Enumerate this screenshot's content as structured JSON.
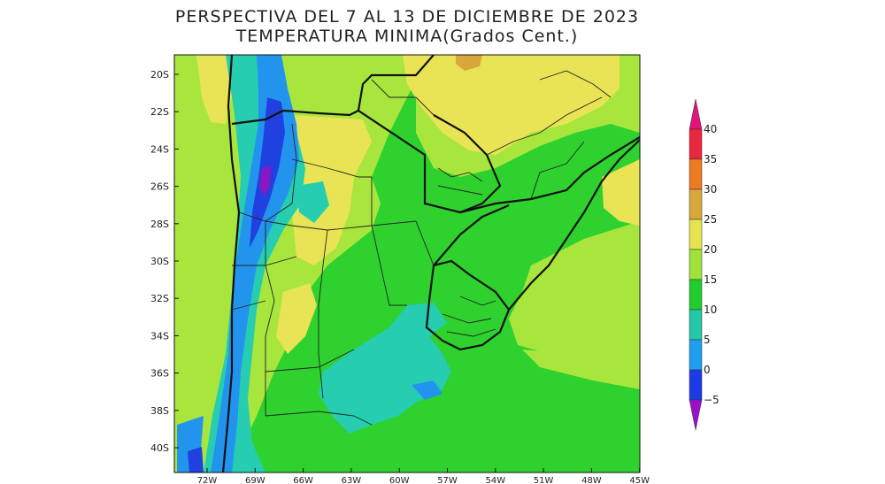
{
  "title": {
    "line1": "PERSPECTIVA DEL 7 AL 13 DE DICIEMBRE DE 2023",
    "line2": "TEMPERATURA MINIMA(Grados Cent.)"
  },
  "lat_labels": [
    "20S",
    "22S",
    "24S",
    "26S",
    "28S",
    "30S",
    "32S",
    "34S",
    "36S",
    "38S",
    "40S"
  ],
  "lon_labels": [
    "72W",
    "69W",
    "66W",
    "63W",
    "60W",
    "57W",
    "54W",
    "51W",
    "48W",
    "45W"
  ],
  "colorbar": {
    "labels": [
      "40",
      "35",
      "30",
      "25",
      "20",
      "15",
      "10",
      "5",
      "0",
      "−5"
    ],
    "colors": [
      "#e0147c",
      "#e8283c",
      "#ee7a22",
      "#d8a63a",
      "#e6e34e",
      "#9ee23a",
      "#22cc2e",
      "#22c8a8",
      "#1ea0ee",
      "#1e3ae6",
      "#9a10c8"
    ]
  },
  "colors": {
    "ocean_green": "#2ed12e",
    "warm_yellow": "#e8e455",
    "light_green": "#a8e63e",
    "cyan": "#26cdb0",
    "blue": "#2294ee",
    "dark_blue": "#2040e0",
    "purple": "#8a18c0"
  }
}
